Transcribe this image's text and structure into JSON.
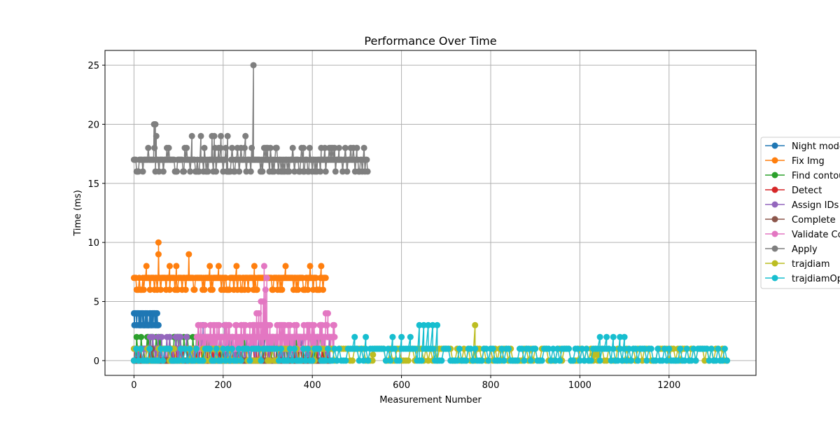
{
  "chart_data": {
    "type": "line",
    "title": "Performance Over Time",
    "xlabel": "Measurement Number",
    "ylabel": "Time (ms)",
    "xlim": [
      -65,
      1395
    ],
    "ylim": [
      -1.25,
      26.25
    ],
    "xticks": [
      0,
      200,
      400,
      600,
      800,
      1000,
      1200
    ],
    "yticks": [
      0,
      5,
      10,
      15,
      20,
      25
    ],
    "grid": true,
    "legend_position": "outside right, vertically centered",
    "series": [
      {
        "name": "Night mode",
        "color": "#1f77b4",
        "x_range": [
          0,
          55
        ],
        "base": 3.5,
        "levels": [
          3,
          4
        ],
        "spikes": []
      },
      {
        "name": "Fix Img",
        "color": "#ff7f0e",
        "x_range": [
          0,
          430
        ],
        "base": 7,
        "levels": [
          6,
          7
        ],
        "spikes": [
          [
            55,
            10
          ],
          [
            55,
            9
          ],
          [
            123,
            9
          ],
          [
            28,
            8
          ],
          [
            80,
            8
          ],
          [
            95,
            8
          ],
          [
            170,
            8
          ],
          [
            190,
            8
          ],
          [
            230,
            8
          ],
          [
            270,
            8
          ],
          [
            340,
            8
          ],
          [
            395,
            8
          ],
          [
            420,
            8
          ]
        ]
      },
      {
        "name": "Find contours",
        "color": "#2ca02c",
        "x_range": [
          0,
          440
        ],
        "base": 0,
        "levels": [
          0,
          1,
          2
        ],
        "spikes": [
          [
            30,
            2
          ],
          [
            60,
            2
          ],
          [
            90,
            2
          ],
          [
            150,
            2
          ],
          [
            210,
            2
          ],
          [
            330,
            2
          ],
          [
            350,
            2
          ]
        ]
      },
      {
        "name": "Detect",
        "color": "#d62728",
        "x_range": [
          0,
          440
        ],
        "base": 0,
        "levels": [
          0,
          1
        ],
        "spikes": [
          [
            15,
            1
          ],
          [
            50,
            1
          ],
          [
            100,
            1
          ],
          [
            180,
            1
          ],
          [
            240,
            1
          ],
          [
            300,
            1
          ],
          [
            360,
            1
          ],
          [
            430,
            1
          ]
        ]
      },
      {
        "name": "Assign IDs",
        "color": "#9467bd",
        "x_range": [
          0,
          440
        ],
        "base": 0,
        "levels": [
          0,
          1,
          2
        ],
        "spikes": [
          [
            155,
            3
          ],
          [
            203,
            3
          ],
          [
            207,
            3
          ],
          [
            100,
            2
          ],
          [
            170,
            2
          ],
          [
            185,
            2
          ],
          [
            220,
            2
          ],
          [
            260,
            2
          ],
          [
            280,
            2
          ]
        ]
      },
      {
        "name": "Complete",
        "color": "#8c564b",
        "x_range": [
          0,
          440
        ],
        "base": 0,
        "levels": [
          0
        ],
        "spikes": [
          [
            40,
            1
          ],
          [
            120,
            1
          ],
          [
            200,
            1
          ],
          [
            320,
            1
          ],
          [
            400,
            1
          ]
        ]
      },
      {
        "name": "Validate Contours",
        "color": "#e377c2",
        "x_range": [
          140,
          450
        ],
        "base": 1.5,
        "levels": [
          1,
          2,
          3
        ],
        "spikes": [
          [
            285,
            5
          ],
          [
            290,
            5
          ],
          [
            295,
            6
          ],
          [
            298,
            7
          ],
          [
            292,
            8
          ],
          [
            280,
            4
          ],
          [
            275,
            4
          ],
          [
            300,
            3
          ],
          [
            305,
            3
          ],
          [
            310,
            2
          ],
          [
            430,
            4
          ],
          [
            435,
            4
          ],
          [
            420,
            3
          ],
          [
            400,
            3
          ],
          [
            390,
            3
          ],
          [
            240,
            3
          ],
          [
            250,
            3
          ],
          [
            260,
            3
          ]
        ]
      },
      {
        "name": "Apply",
        "color": "#7f7f7f",
        "x_range": [
          0,
          525
        ],
        "base": 17,
        "levels": [
          16,
          17,
          18
        ],
        "spikes": [
          [
            268,
            25
          ],
          [
            45,
            20
          ],
          [
            48,
            20
          ],
          [
            50,
            19
          ],
          [
            150,
            19
          ],
          [
            175,
            19
          ],
          [
            180,
            19
          ],
          [
            195,
            19
          ],
          [
            210,
            19
          ],
          [
            250,
            19
          ],
          [
            130,
            19
          ],
          [
            190,
            18
          ],
          [
            300,
            18
          ],
          [
            320,
            18
          ],
          [
            380,
            18
          ],
          [
            420,
            18
          ],
          [
            460,
            18
          ],
          [
            500,
            18
          ]
        ]
      },
      {
        "name": "trajdiam",
        "color": "#bcbd22",
        "x_range": [
          0,
          1330
        ],
        "base": 0.5,
        "levels": [
          0,
          1
        ],
        "spikes": [
          [
            765,
            3
          ],
          [
            536,
            0.5
          ],
          [
            1030,
            0.5
          ],
          [
            1035,
            0.5
          ],
          [
            1040,
            0.5
          ]
        ]
      },
      {
        "name": "trajdiamOpt",
        "color": "#17becf",
        "x_range": [
          0,
          1330
        ],
        "base": 0.5,
        "levels": [
          0,
          1
        ],
        "spikes": [
          [
            640,
            3
          ],
          [
            650,
            3
          ],
          [
            660,
            3
          ],
          [
            670,
            3
          ],
          [
            680,
            3
          ],
          [
            495,
            2
          ],
          [
            520,
            2
          ],
          [
            580,
            2
          ],
          [
            600,
            2
          ],
          [
            620,
            2
          ],
          [
            1045,
            2
          ],
          [
            1060,
            2
          ],
          [
            1075,
            2
          ],
          [
            1090,
            2
          ],
          [
            1100,
            2
          ]
        ]
      }
    ]
  }
}
